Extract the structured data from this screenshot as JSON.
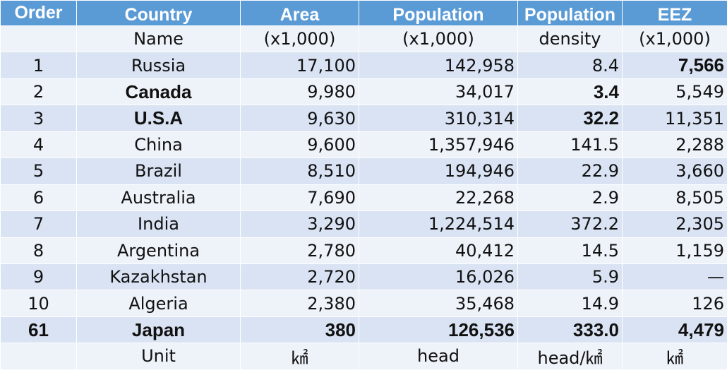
{
  "header": {
    "order": "Order",
    "country": "Country",
    "area": "Area",
    "population": "Population",
    "density": "Population",
    "eez": "EEZ"
  },
  "subheader": {
    "order": "",
    "country": "Name",
    "area": "(x1,000)",
    "population": "(x1,000)",
    "density": "density",
    "eez": "(x1,000)"
  },
  "rows": [
    {
      "order": "1",
      "name": "Russia",
      "area": "17,100",
      "population": "142,958",
      "density": "8.4",
      "eez": "7,566"
    },
    {
      "order": "2",
      "name": "Canada",
      "area": "9,980",
      "population": "34,017",
      "density": "3.4",
      "eez": "5,549"
    },
    {
      "order": "3",
      "name": "U.S.A",
      "area": "9,630",
      "population": "310,314",
      "density": "32.2",
      "eez": "11,351"
    },
    {
      "order": "4",
      "name": "China",
      "area": "9,600",
      "population": "1,357,946",
      "density": "141.5",
      "eez": "2,288"
    },
    {
      "order": "5",
      "name": "Brazil",
      "area": "8,510",
      "population": "194,946",
      "density": "22.9",
      "eez": "3,660"
    },
    {
      "order": "6",
      "name": "Australia",
      "area": "7,690",
      "population": "22,268",
      "density": "2.9",
      "eez": "8,505"
    },
    {
      "order": "7",
      "name": "India",
      "area": "3,290",
      "population": "1,224,514",
      "density": "372.2",
      "eez": "2,305"
    },
    {
      "order": "8",
      "name": "Argentina",
      "area": "2,780",
      "population": "40,412",
      "density": "14.5",
      "eez": "1,159"
    },
    {
      "order": "9",
      "name": "Kazakhstan",
      "area": "2,720",
      "population": "16,026",
      "density": "5.9",
      "eez": "—"
    },
    {
      "order": "10",
      "name": "Algeria",
      "area": "2,380",
      "population": "35,468",
      "density": "14.9",
      "eez": "126"
    },
    {
      "order": "61",
      "name": "Japan",
      "area": "380",
      "population": "126,536",
      "density": "333.0",
      "eez": "4,479"
    }
  ],
  "units": {
    "order": "",
    "country": "Unit",
    "area": "㎢",
    "population": "head",
    "density": "head/㎢",
    "eez": "㎢"
  },
  "colors": {
    "header_bg": "#5b9bd5",
    "row_dark": "#dae3f3",
    "row_light": "#eef2f9"
  }
}
